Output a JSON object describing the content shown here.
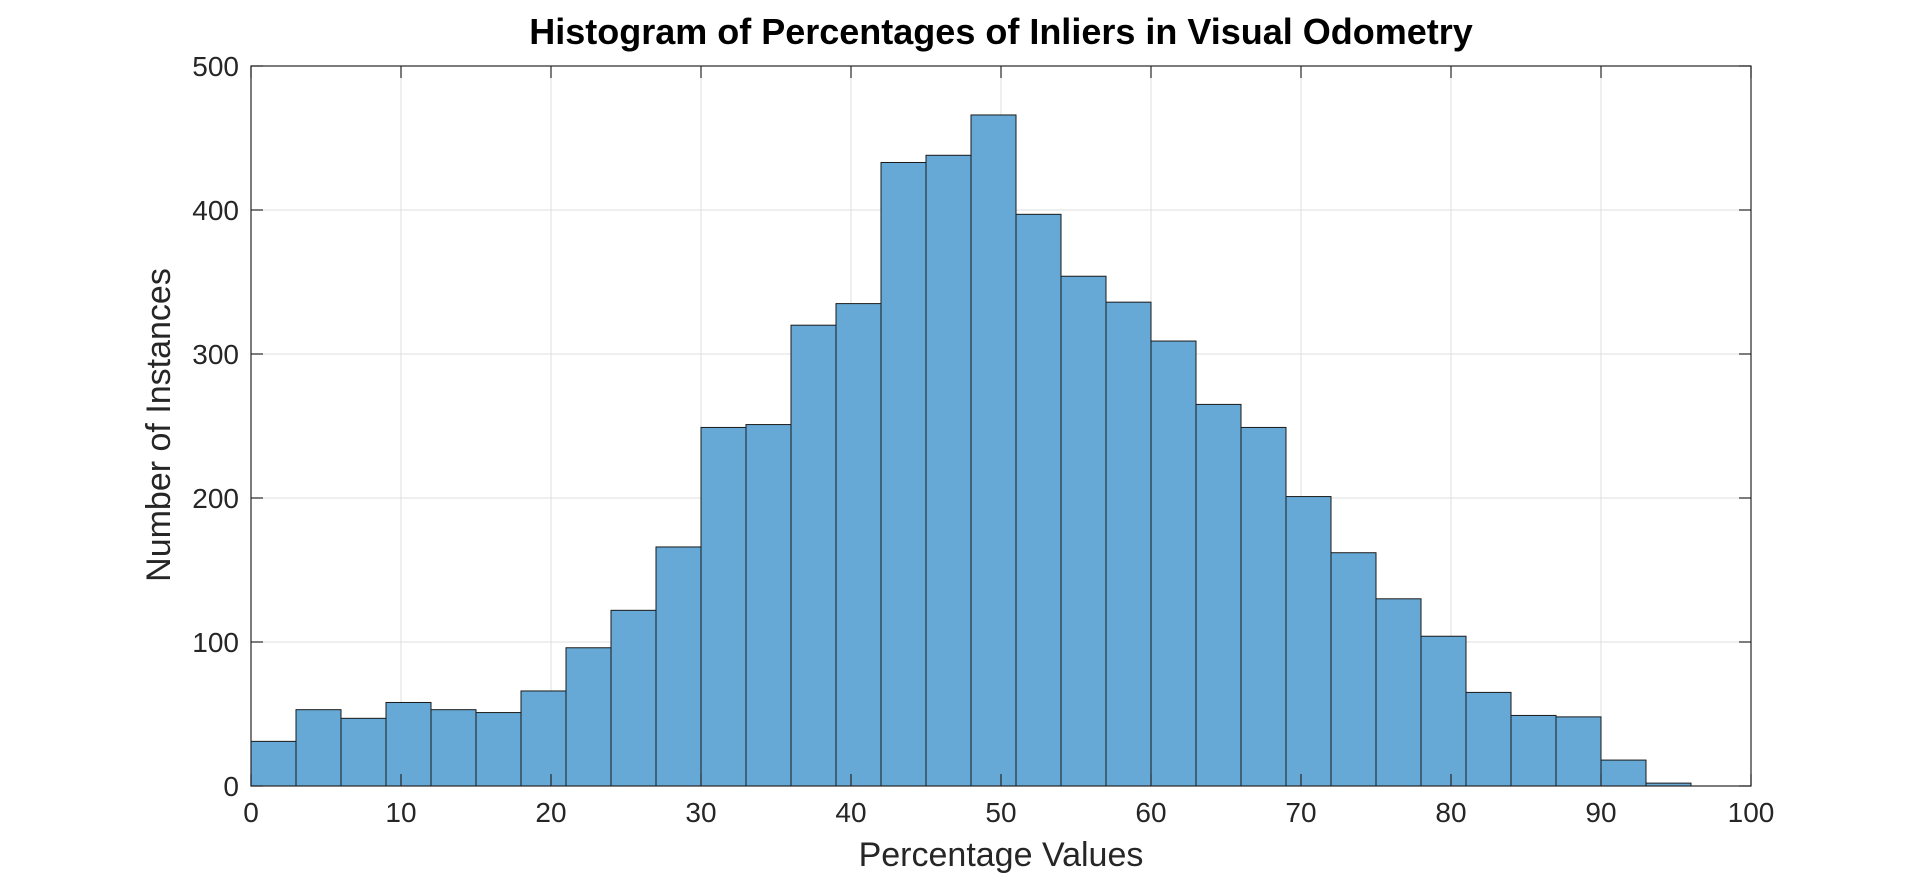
{
  "chart_data": {
    "type": "bar",
    "title": "Histogram of Percentages of Inliers in Visual Odometry",
    "xlabel": "Percentage Values",
    "ylabel": "Number of Instances",
    "xlim": [
      0,
      100
    ],
    "ylim": [
      0,
      500
    ],
    "bin_width": 3,
    "bin_edges": [
      0,
      3,
      6,
      9,
      12,
      15,
      18,
      21,
      24,
      27,
      30,
      33,
      36,
      39,
      42,
      45,
      48,
      51,
      54,
      57,
      60,
      63,
      66,
      69,
      72,
      75,
      78,
      81,
      84,
      87,
      90,
      93,
      96
    ],
    "values": [
      31,
      53,
      47,
      58,
      53,
      51,
      66,
      96,
      122,
      166,
      249,
      251,
      320,
      335,
      433,
      438,
      466,
      397,
      354,
      336,
      309,
      265,
      249,
      201,
      162,
      130,
      104,
      65,
      49,
      48,
      18,
      2
    ],
    "x_ticks": [
      0,
      10,
      20,
      30,
      40,
      50,
      60,
      70,
      80,
      90,
      100
    ],
    "x_tick_labels": [
      "0",
      "10",
      "20",
      "30",
      "40",
      "50",
      "60",
      "70",
      "80",
      "90",
      "100"
    ],
    "y_ticks": [
      0,
      100,
      200,
      300,
      400,
      500
    ],
    "y_tick_labels": [
      "0",
      "100",
      "200",
      "300",
      "400",
      "500"
    ],
    "grid": true,
    "bar_color": "#67a9d6",
    "edge_color": "#1a1a1a"
  }
}
